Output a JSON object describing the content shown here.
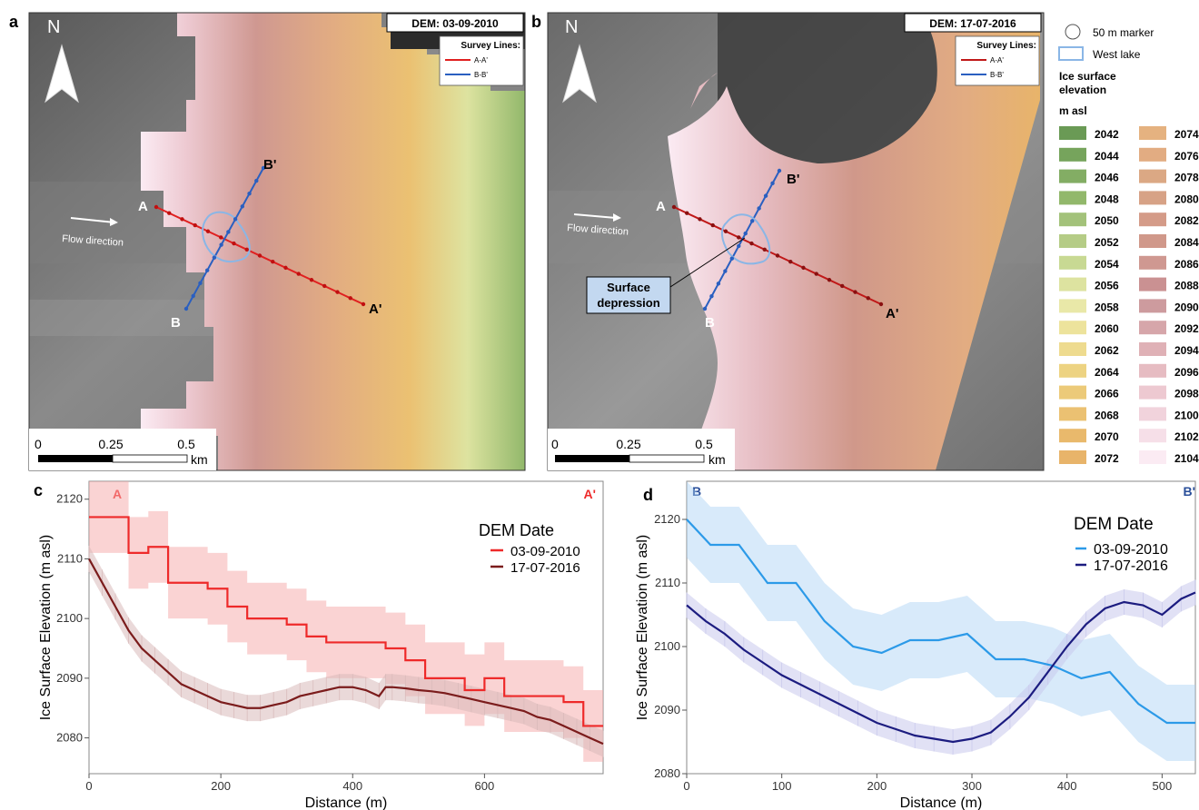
{
  "panels": {
    "a": {
      "letter": "a",
      "dem_label": "DEM: 03-09-2010",
      "north": "N",
      "survey_title": "Survey Lines:",
      "survey_items": [
        "A-A'",
        "B-B'"
      ],
      "points": {
        "A": "A",
        "A_prime": "A'",
        "B": "B",
        "B_prime": "B'"
      },
      "flow_label": "Flow direction",
      "scale_ticks": [
        "0",
        "0.25",
        "0.5"
      ],
      "scale_unit": "km"
    },
    "b": {
      "letter": "b",
      "dem_label": "DEM: 17-07-2016",
      "north": "N",
      "survey_title": "Survey Lines:",
      "survey_items": [
        "A-A'",
        "B-B'"
      ],
      "points": {
        "A": "A",
        "A_prime": "A'",
        "B": "B",
        "B_prime": "B'"
      },
      "flow_label": "Flow direction",
      "callout": [
        "Surface",
        "depression"
      ],
      "scale_ticks": [
        "0",
        "0.25",
        "0.5"
      ],
      "scale_unit": "km"
    }
  },
  "legend": {
    "marker_label": "50 m marker",
    "lake_label": "West lake",
    "title_lines": [
      "Ice surface",
      "elevation"
    ],
    "unit": "m asl",
    "elevations": [
      2042,
      2044,
      2046,
      2048,
      2050,
      2052,
      2054,
      2056,
      2058,
      2060,
      2062,
      2064,
      2066,
      2068,
      2070,
      2072,
      2074,
      2076,
      2078,
      2080,
      2082,
      2084,
      2086,
      2088,
      2090,
      2092,
      2094,
      2096,
      2098,
      2100,
      2102,
      2104
    ],
    "colors": [
      "#6a9a55",
      "#76a45c",
      "#83ad64",
      "#92b86b",
      "#a3c27a",
      "#b5cc86",
      "#c8d993",
      "#dde3a0",
      "#e9e8a8",
      "#ede39c",
      "#eedb8f",
      "#edd382",
      "#ecca79",
      "#ebc172",
      "#e9b96c",
      "#e8b46a",
      "#e5b280",
      "#e2ac82",
      "#dba884",
      "#d7a286",
      "#d49b88",
      "#d0988a",
      "#cf9891",
      "#ca9192",
      "#cd9b9e",
      "#d6a6aa",
      "#dfb1b6",
      "#e6bcc2",
      "#edc9d1",
      "#f1d3dc",
      "#f6dfe8",
      "#fbebf3"
    ],
    "lake_color": "#8ab6e6"
  },
  "colors": {
    "line_aa": "#e02020",
    "line_bb": "#2a5fc0",
    "series_aa_2010": "#ee2a2a",
    "series_aa_2016": "#7b1c1c",
    "series_bb_2010": "#2c9ae8",
    "series_bb_2016": "#1c1c80"
  },
  "chart_data": [
    {
      "id": "c",
      "type": "line",
      "panel_letter": "c",
      "corner_labels": [
        "A",
        "A'"
      ],
      "xlabel": "Distance (m)",
      "ylabel": "Ice Surface Elevation (m asl)",
      "xlim": [
        0,
        780
      ],
      "ylim": [
        2074,
        2123
      ],
      "xticks": [
        0,
        200,
        400,
        600
      ],
      "yticks": [
        2080,
        2090,
        2100,
        2110,
        2120
      ],
      "legend_title": "DEM Date",
      "legend_position": "top-right",
      "grid": false,
      "series": [
        {
          "name": "03-09-2010",
          "step": true,
          "band": 6,
          "x": [
            0,
            30,
            60,
            90,
            120,
            150,
            180,
            210,
            240,
            270,
            300,
            330,
            360,
            390,
            420,
            450,
            480,
            510,
            540,
            570,
            600,
            630,
            660,
            690,
            720,
            750,
            780
          ],
          "values": [
            2117,
            2117,
            2111,
            2112,
            2106,
            2106,
            2105,
            2102,
            2100,
            2100,
            2099,
            2097,
            2096,
            2096,
            2096,
            2095,
            2093,
            2090,
            2090,
            2088,
            2090,
            2087,
            2087,
            2087,
            2086,
            2082,
            2082
          ]
        },
        {
          "name": "17-07-2016",
          "step": false,
          "band": 2.2,
          "x": [
            0,
            20,
            40,
            60,
            80,
            100,
            120,
            140,
            160,
            180,
            200,
            220,
            240,
            260,
            280,
            300,
            320,
            340,
            360,
            380,
            400,
            420,
            440,
            450,
            460,
            480,
            500,
            520,
            540,
            560,
            580,
            600,
            620,
            640,
            660,
            680,
            700,
            720,
            740,
            760,
            780
          ],
          "values": [
            2110,
            2106,
            2102,
            2098,
            2095,
            2093,
            2091,
            2089,
            2088,
            2087,
            2086,
            2085.5,
            2085,
            2085,
            2085.5,
            2086,
            2087,
            2087.5,
            2088,
            2088.5,
            2088.5,
            2088,
            2087,
            2088.5,
            2088.5,
            2088.3,
            2088,
            2087.8,
            2087.5,
            2087,
            2086.5,
            2086,
            2085.5,
            2085,
            2084.5,
            2083.5,
            2083,
            2082,
            2081,
            2080,
            2079
          ]
        }
      ]
    },
    {
      "id": "d",
      "type": "line",
      "panel_letter": "d",
      "corner_labels": [
        "B",
        "B'"
      ],
      "xlabel": "Distance (m)",
      "ylabel": "Ice Surface Elevation (m asl)",
      "xlim": [
        0,
        535
      ],
      "ylim": [
        2080,
        2126
      ],
      "xticks": [
        0,
        100,
        200,
        300,
        400,
        500
      ],
      "yticks": [
        2080,
        2090,
        2100,
        2110,
        2120
      ],
      "legend_title": "DEM Date",
      "legend_position": "top-right",
      "grid": false,
      "series": [
        {
          "name": "03-09-2010",
          "step": false,
          "band": 6,
          "x": [
            0,
            25,
            55,
            85,
            115,
            145,
            175,
            205,
            235,
            265,
            295,
            325,
            355,
            385,
            415,
            445,
            475,
            505,
            535
          ],
          "values": [
            2120,
            2116,
            2116,
            2110,
            2110,
            2104,
            2100,
            2099,
            2101,
            2101,
            2102,
            2098,
            2098,
            2097,
            2095,
            2096,
            2091,
            2088,
            2088
          ]
        },
        {
          "name": "17-07-2016",
          "step": false,
          "band": 2,
          "x": [
            0,
            20,
            40,
            60,
            80,
            100,
            120,
            140,
            160,
            180,
            200,
            220,
            240,
            260,
            280,
            300,
            320,
            340,
            360,
            380,
            400,
            420,
            440,
            460,
            480,
            500,
            520,
            535
          ],
          "values": [
            2106.5,
            2104,
            2102,
            2099.5,
            2097.5,
            2095.5,
            2094,
            2092.5,
            2091,
            2089.5,
            2088,
            2087,
            2086,
            2085.5,
            2085,
            2085.5,
            2086.5,
            2089,
            2092,
            2096,
            2100,
            2103.5,
            2106,
            2107,
            2106.5,
            2105,
            2107.5,
            2108.5
          ]
        }
      ]
    }
  ]
}
